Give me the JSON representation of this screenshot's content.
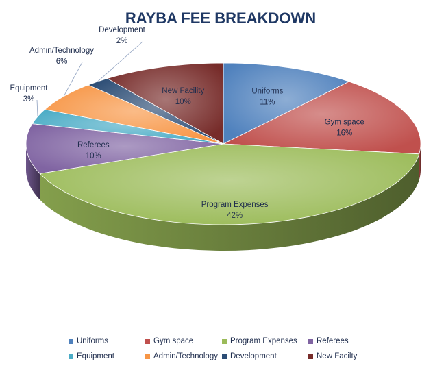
{
  "chart_data": {
    "type": "pie",
    "title": "RAYBA FEE BREAKDOWN",
    "slices": [
      {
        "label": "Uniforms",
        "value": 11,
        "value_label": "11%",
        "color": "#4f81bd"
      },
      {
        "label": "Gym space",
        "value": 16,
        "value_label": "16%",
        "color": "#c0504d"
      },
      {
        "label": "Program Expenses",
        "value": 42,
        "value_label": "42%",
        "color": "#9bbb59"
      },
      {
        "label": "Referees",
        "value": 10,
        "value_label": "10%",
        "color": "#8064a2"
      },
      {
        "label": "Equipment",
        "value": 3,
        "value_label": "3%",
        "color": "#4bacc6"
      },
      {
        "label": "Admin/Technology",
        "value": 6,
        "value_label": "6%",
        "color": "#f79646"
      },
      {
        "label": "Development",
        "value": 2,
        "value_label": "2%",
        "color": "#2c4d75"
      },
      {
        "label": "New Facility",
        "value": 10,
        "value_label": "10%",
        "color": "#772c2a"
      }
    ],
    "legend": {
      "position": "bottom",
      "entries": [
        "Uniforms",
        "Gym space",
        "Program Expenses",
        "Referees",
        "Equipment",
        "Admin/Technology",
        "Development",
        "New Facilty"
      ]
    }
  }
}
